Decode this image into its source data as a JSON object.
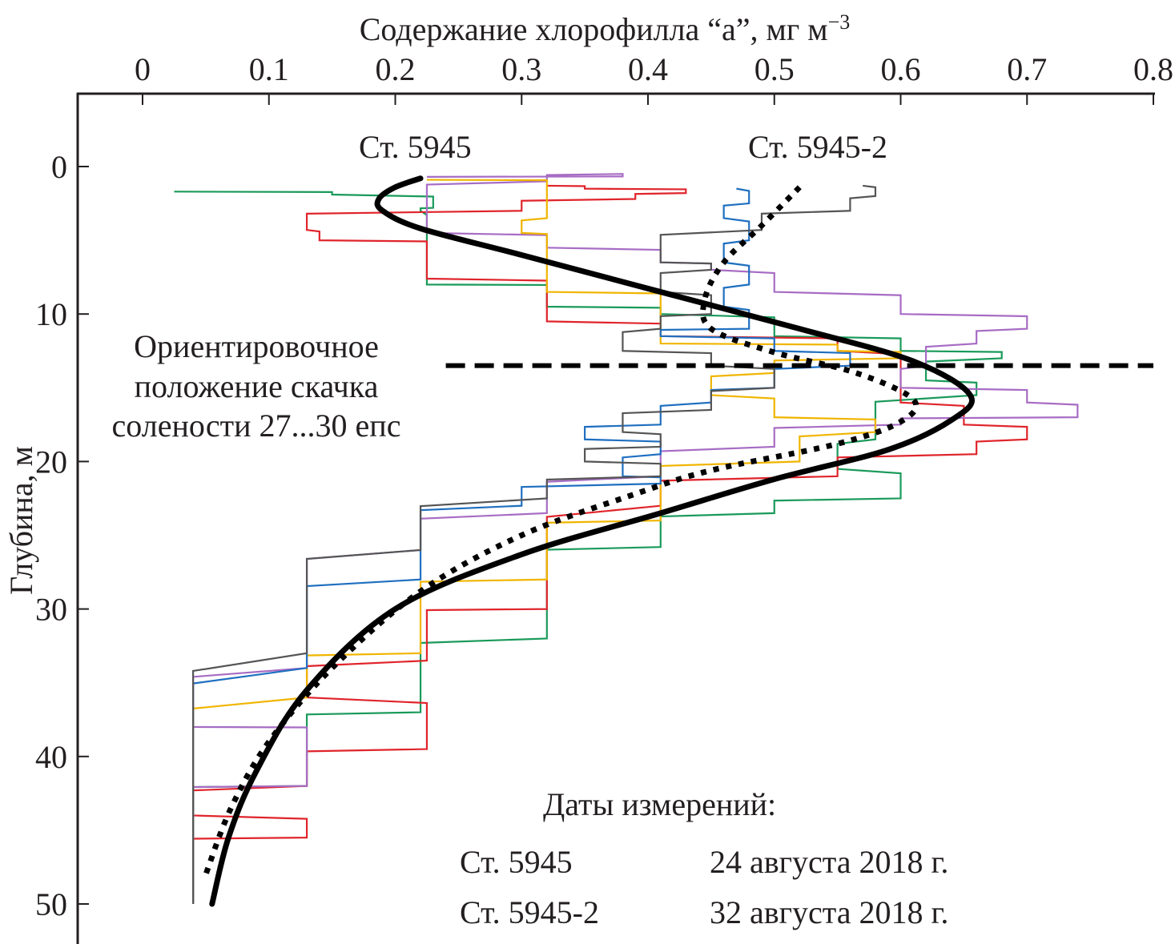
{
  "chart_data": {
    "type": "line",
    "title": "",
    "xlabel": "Содержание хлорофилла “a”, мг м",
    "xlabel_superscript": "−3",
    "ylabel": "Глубина, м",
    "x_axis_position": "top",
    "y_axis_inverted": true,
    "xlim": [
      0,
      0.8
    ],
    "ylim": [
      0,
      50
    ],
    "xticks": [
      0,
      0.1,
      0.2,
      0.3,
      0.4,
      0.5,
      0.6,
      0.7,
      0.8
    ],
    "xtick_labels": [
      "0",
      "0.1",
      "0.2",
      "0.3",
      "0.4",
      "0.5",
      "0.6",
      "0.7",
      "0.8"
    ],
    "yticks": [
      0,
      10,
      20,
      30,
      40,
      50
    ],
    "ytick_labels": [
      "0",
      "10",
      "20",
      "30",
      "40",
      "50"
    ],
    "grid": false,
    "series": [
      {
        "name": "Ст. 5945",
        "style": "solid",
        "color": "#000000",
        "points": [
          [
            0.22,
            0.8
          ],
          [
            0.2,
            1.4
          ],
          [
            0.187,
            2.2
          ],
          [
            0.19,
            3.0
          ],
          [
            0.22,
            4.2
          ],
          [
            0.3,
            6.0
          ],
          [
            0.41,
            8.5
          ],
          [
            0.52,
            11.0
          ],
          [
            0.61,
            13.2
          ],
          [
            0.655,
            15.5
          ],
          [
            0.64,
            17.2
          ],
          [
            0.59,
            19.2
          ],
          [
            0.5,
            21.2
          ],
          [
            0.41,
            23.5
          ],
          [
            0.3,
            26.3
          ],
          [
            0.2,
            30.0
          ],
          [
            0.13,
            35.5
          ],
          [
            0.09,
            41.0
          ],
          [
            0.068,
            45.5
          ],
          [
            0.055,
            50.0
          ]
        ]
      },
      {
        "name": "Ст. 5945-2",
        "style": "dotted",
        "color": "#000000",
        "points": [
          [
            0.52,
            1.4
          ],
          [
            0.49,
            4.0
          ],
          [
            0.46,
            6.5
          ],
          [
            0.445,
            9.0
          ],
          [
            0.45,
            11.0
          ],
          [
            0.5,
            12.6
          ],
          [
            0.565,
            14.0
          ],
          [
            0.61,
            15.8
          ],
          [
            0.6,
            17.3
          ],
          [
            0.55,
            18.8
          ],
          [
            0.45,
            20.6
          ],
          [
            0.39,
            22.2
          ],
          [
            0.3,
            25.0
          ],
          [
            0.22,
            28.8
          ],
          [
            0.15,
            34.0
          ],
          [
            0.1,
            39.0
          ],
          [
            0.07,
            43.5
          ],
          [
            0.05,
            48.0
          ]
        ]
      }
    ],
    "raw_profiles": [
      {
        "name": "profile-green",
        "color": "#1a9a5a",
        "points": [
          [
            0.025,
            1.7
          ],
          [
            0.15,
            1.9
          ],
          [
            0.23,
            2.8
          ],
          [
            0.22,
            3.0
          ],
          [
            0.225,
            5.0
          ],
          [
            0.225,
            8.0
          ],
          [
            0.32,
            8.2
          ],
          [
            0.32,
            9.5
          ],
          [
            0.41,
            10.0
          ],
          [
            0.5,
            11.5
          ],
          [
            0.6,
            12.5
          ],
          [
            0.68,
            13.0
          ],
          [
            0.62,
            14.5
          ],
          [
            0.66,
            15.5
          ],
          [
            0.58,
            18.5
          ],
          [
            0.55,
            20.5
          ],
          [
            0.6,
            22.5
          ],
          [
            0.5,
            23.5
          ],
          [
            0.41,
            25.0
          ],
          [
            0.41,
            25.8
          ],
          [
            0.32,
            27.0
          ],
          [
            0.32,
            32.0
          ],
          [
            0.22,
            34.0
          ],
          [
            0.22,
            37.0
          ],
          [
            0.13,
            38.0
          ],
          [
            0.13,
            42.0
          ],
          [
            0.04,
            42.5
          ],
          [
            0.04,
            50.0
          ]
        ]
      },
      {
        "name": "profile-red",
        "color": "#e0242b",
        "points": [
          [
            0.32,
            1.3
          ],
          [
            0.35,
            1.5
          ],
          [
            0.43,
            1.8
          ],
          [
            0.39,
            2.2
          ],
          [
            0.3,
            3.0
          ],
          [
            0.13,
            4.3
          ],
          [
            0.14,
            5.0
          ],
          [
            0.225,
            5.5
          ],
          [
            0.225,
            7.6
          ],
          [
            0.32,
            8.5
          ],
          [
            0.32,
            10.5
          ],
          [
            0.41,
            11.5
          ],
          [
            0.55,
            12.5
          ],
          [
            0.6,
            14.0
          ],
          [
            0.6,
            16.0
          ],
          [
            0.65,
            17.5
          ],
          [
            0.7,
            18.5
          ],
          [
            0.66,
            19.5
          ],
          [
            0.55,
            21.0
          ],
          [
            0.41,
            23.0
          ],
          [
            0.32,
            28.0
          ],
          [
            0.32,
            30.0
          ],
          [
            0.225,
            30.5
          ],
          [
            0.225,
            33.5
          ],
          [
            0.13,
            36.0
          ],
          [
            0.225,
            38.5
          ],
          [
            0.225,
            39.5
          ],
          [
            0.13,
            40.5
          ],
          [
            0.13,
            42.0
          ],
          [
            0.04,
            44.0
          ],
          [
            0.13,
            45.5
          ],
          [
            0.04,
            46.0
          ],
          [
            0.04,
            50.0
          ]
        ]
      },
      {
        "name": "profile-violet",
        "color": "#a76cc4",
        "points": [
          [
            0.225,
            0.7
          ],
          [
            0.38,
            0.5
          ],
          [
            0.32,
            1.0
          ],
          [
            0.225,
            2.5
          ],
          [
            0.225,
            4.5
          ],
          [
            0.32,
            5.5
          ],
          [
            0.41,
            6.5
          ],
          [
            0.45,
            7.0
          ],
          [
            0.5,
            8.5
          ],
          [
            0.6,
            10.0
          ],
          [
            0.7,
            11.0
          ],
          [
            0.66,
            12.0
          ],
          [
            0.62,
            13.5
          ],
          [
            0.6,
            15.0
          ],
          [
            0.7,
            16.0
          ],
          [
            0.74,
            17.0
          ],
          [
            0.6,
            17.5
          ],
          [
            0.5,
            19.0
          ],
          [
            0.41,
            21.0
          ],
          [
            0.32,
            23.5
          ],
          [
            0.22,
            26.0
          ],
          [
            0.13,
            30.0
          ],
          [
            0.13,
            34.0
          ],
          [
            0.04,
            38.0
          ],
          [
            0.13,
            38.2
          ],
          [
            0.13,
            42.0
          ],
          [
            0.04,
            42.5
          ],
          [
            0.04,
            50.0
          ]
        ]
      },
      {
        "name": "profile-yellow",
        "color": "#f0b500",
        "points": [
          [
            0.225,
            0.9
          ],
          [
            0.32,
            1.1
          ],
          [
            0.32,
            3.5
          ],
          [
            0.3,
            4.5
          ],
          [
            0.32,
            5.0
          ],
          [
            0.32,
            8.5
          ],
          [
            0.41,
            9.2
          ],
          [
            0.41,
            12.0
          ],
          [
            0.55,
            12.5
          ],
          [
            0.6,
            13.0
          ],
          [
            0.5,
            14.0
          ],
          [
            0.45,
            15.5
          ],
          [
            0.5,
            17.0
          ],
          [
            0.58,
            18.0
          ],
          [
            0.52,
            20.0
          ],
          [
            0.41,
            22.0
          ],
          [
            0.41,
            24.0
          ],
          [
            0.32,
            25.0
          ],
          [
            0.32,
            28.0
          ],
          [
            0.22,
            29.0
          ],
          [
            0.22,
            33.0
          ],
          [
            0.13,
            34.0
          ],
          [
            0.13,
            36.0
          ],
          [
            0.04,
            41.0
          ],
          [
            0.04,
            50.0
          ]
        ]
      },
      {
        "name": "profile-blue",
        "color": "#1f6fc0",
        "points": [
          [
            0.47,
            1.5
          ],
          [
            0.48,
            2.5
          ],
          [
            0.46,
            3.5
          ],
          [
            0.48,
            5.0
          ],
          [
            0.46,
            6.5
          ],
          [
            0.48,
            8.0
          ],
          [
            0.46,
            9.5
          ],
          [
            0.48,
            11.0
          ],
          [
            0.41,
            11.5
          ],
          [
            0.5,
            12.5
          ],
          [
            0.56,
            13.5
          ],
          [
            0.5,
            15.0
          ],
          [
            0.45,
            16.0
          ],
          [
            0.41,
            17.5
          ],
          [
            0.35,
            18.5
          ],
          [
            0.41,
            19.5
          ],
          [
            0.38,
            21.0
          ],
          [
            0.41,
            21.5
          ],
          [
            0.3,
            23.0
          ],
          [
            0.22,
            25.0
          ],
          [
            0.22,
            28.0
          ],
          [
            0.13,
            31.0
          ],
          [
            0.13,
            34.0
          ],
          [
            0.04,
            41.0
          ],
          [
            0.04,
            50.0
          ]
        ]
      },
      {
        "name": "profile-gray",
        "color": "#555555",
        "points": [
          [
            0.57,
            1.3
          ],
          [
            0.58,
            2.0
          ],
          [
            0.56,
            3.0
          ],
          [
            0.49,
            4.3
          ],
          [
            0.41,
            6.5
          ],
          [
            0.45,
            7.0
          ],
          [
            0.41,
            8.5
          ],
          [
            0.45,
            10.0
          ],
          [
            0.41,
            11.0
          ],
          [
            0.38,
            12.5
          ],
          [
            0.45,
            13.5
          ],
          [
            0.5,
            15.0
          ],
          [
            0.45,
            16.5
          ],
          [
            0.38,
            18.0
          ],
          [
            0.41,
            19.0
          ],
          [
            0.35,
            20.0
          ],
          [
            0.41,
            21.0
          ],
          [
            0.32,
            22.5
          ],
          [
            0.22,
            26.0
          ],
          [
            0.13,
            30.0
          ],
          [
            0.13,
            33.0
          ],
          [
            0.04,
            41.0
          ],
          [
            0.04,
            50.0
          ]
        ]
      }
    ],
    "reference_lines": [
      {
        "name": "salinity-jump",
        "style": "dashed",
        "depth": 13.5,
        "x_from": 0.24,
        "x_to": 0.8
      }
    ]
  },
  "labels": {
    "station_a": "Ст. 5945",
    "station_b": "Ст. 5945-2",
    "salinity_note_line1": "Ориентировочное",
    "salinity_note_line2": "положение скачка",
    "salinity_note_line3": "солености 27...30 епс"
  },
  "legend": {
    "title": "Даты измерений:",
    "rows": [
      {
        "station": "Ст. 5945",
        "date": "24 августа 2018 г."
      },
      {
        "station": "Ст. 5945-2",
        "date": "32 августа 2018 г."
      }
    ]
  }
}
